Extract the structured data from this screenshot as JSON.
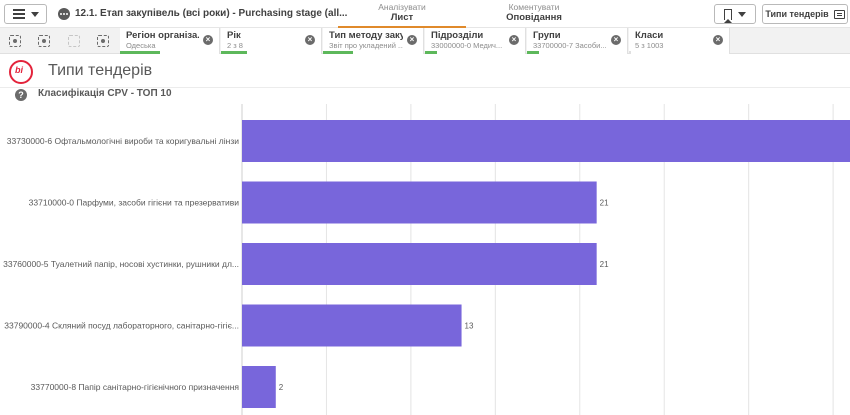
{
  "toolbar": {
    "app_title": "12.1. Етап закупівель (всі роки) - Purchasing stage (all...",
    "analyze_small": "Аналізувати",
    "analyze_big": "Лист",
    "comment_small": "Коментувати",
    "comment_big": "Оповідання",
    "sheet_button_label": "Типи тендерів"
  },
  "selections": [
    {
      "label": "Регіон організа...",
      "value": "Одеська",
      "color": "#5db85b"
    },
    {
      "label": "Рік",
      "value": "2 з 8",
      "color": "#5db85b"
    },
    {
      "label": "Тип методу заку...",
      "value": "Звіт про укладений ...",
      "color": "#5db85b"
    },
    {
      "label": "Підрозділи",
      "value": "33000000-0 Медич...",
      "color": "#5db85b"
    },
    {
      "label": "Групи",
      "value": "33700000-7 Засоби...",
      "color": "#5db85b"
    },
    {
      "label": "Класи",
      "value": "5 з 1003",
      "color": "#e0e0e0"
    }
  ],
  "sheet": {
    "logo_text": "bi",
    "title": "Типи тендерів"
  },
  "chart": {
    "help_icon": "?",
    "title": "Класифікація CPV - ТОП 10"
  },
  "chart_data": {
    "type": "bar",
    "orientation": "horizontal",
    "categories": [
      "33730000-6 Офтальмологічні вироби та коригувальні лінзи",
      "33710000-0 Парфуми, засоби гігієни та презервативи",
      "33760000-5 Туалетний папір, носові хустинки, рушники дл...",
      "33790000-4 Скляний посуд лабораторного, санітарно-гігіє...",
      "33770000-8 Папір санітарно-гігієнічного призначення"
    ],
    "values": [
      36,
      21,
      21,
      13,
      2
    ],
    "value_labels": [
      "",
      "21",
      "21",
      "13",
      "2"
    ],
    "bar_color": "#7866db",
    "xlim": [
      0,
      36
    ],
    "grid": true,
    "title": "Класифікація CPV - ТОП 10"
  }
}
